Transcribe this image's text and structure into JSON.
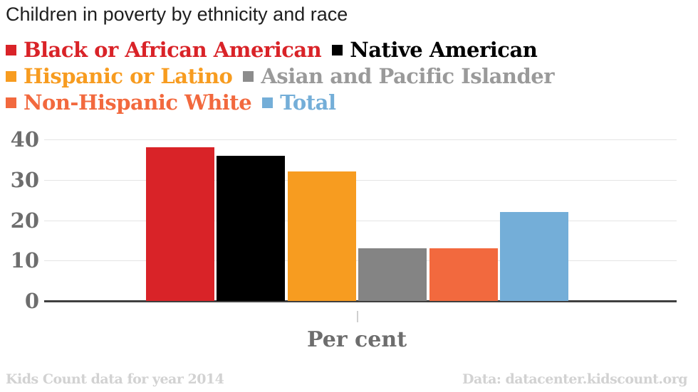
{
  "title": "Children in poverty by ethnicity and race",
  "chart_data": {
    "type": "bar",
    "categories": [
      "Black or African American",
      "Native American",
      "Hispanic or Latino",
      "Asian and Pacific Islander",
      "Non-Hispanic White",
      "Total"
    ],
    "values": [
      38,
      36,
      32,
      13,
      13,
      22
    ],
    "bar_colors": [
      "#d92328",
      "#000000",
      "#f79c20",
      "#848484",
      "#f2693e",
      "#74aed8"
    ],
    "title": "Children in poverty by ethnicity and race",
    "xlabel": "Per cent",
    "ylabel": "",
    "ylim": [
      0,
      40
    ],
    "yticks": [
      0,
      10,
      20,
      30,
      40
    ],
    "grid": true,
    "legend_position": "top"
  },
  "legend": {
    "rows": [
      {
        "items": [
          {
            "label": "Black or African American",
            "swatch_color": "#d92328",
            "text_color": "#d92328"
          },
          {
            "label": "Native American",
            "swatch_color": "#000000",
            "text_color": "#000000"
          }
        ]
      },
      {
        "items": [
          {
            "label": "Hispanic or Latino",
            "swatch_color": "#f79c20",
            "text_color": "#f79c20"
          },
          {
            "label": "Asian and Pacific Islander",
            "swatch_color": "#8c8c8c",
            "text_color": "#9a9a9a"
          }
        ]
      },
      {
        "items": [
          {
            "label": "Non-Hispanic White",
            "swatch_color": "#f2693e",
            "text_color": "#f2693e"
          },
          {
            "label": "Total",
            "swatch_color": "#74aed8",
            "text_color": "#74aed8"
          }
        ]
      }
    ]
  },
  "axis": {
    "x_label": "Per cent",
    "tick_label_color": "#6d6d6d",
    "gridline_color": "#e4e4e4",
    "baseline_color": "#3f3f3f"
  },
  "footer": {
    "left": "Kids Count data for year 2014",
    "right": "Data: datacenter.kidscount.org"
  }
}
